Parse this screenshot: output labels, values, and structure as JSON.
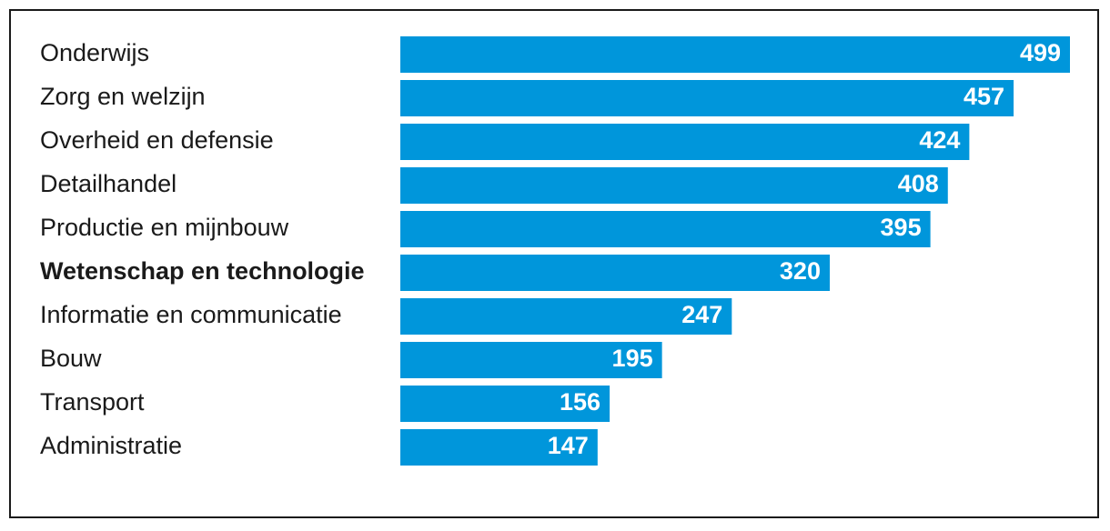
{
  "chart_data": {
    "type": "bar",
    "orientation": "horizontal",
    "categories": [
      "Onderwijs",
      "Zorg en welzijn",
      "Overheid en defensie",
      "Detailhandel",
      "Productie en mijnbouw",
      "Wetenschap en technologie",
      "Informatie en communicatie",
      "Bouw",
      "Transport",
      "Administratie"
    ],
    "values": [
      499,
      457,
      424,
      408,
      395,
      320,
      247,
      195,
      156,
      147
    ],
    "value_labels": [
      "499",
      "457",
      "424",
      "408",
      "395",
      "320",
      "247",
      "195",
      "156",
      "147"
    ],
    "highlighted_category": "Wetenschap en technologie",
    "bar_color": "#0096db",
    "label_color": "#1a1a1a",
    "value_label_color": "#ffffff",
    "xlim": [
      0,
      499
    ],
    "title": "",
    "xlabel": "",
    "ylabel": "",
    "grid": false,
    "legend": "none"
  }
}
